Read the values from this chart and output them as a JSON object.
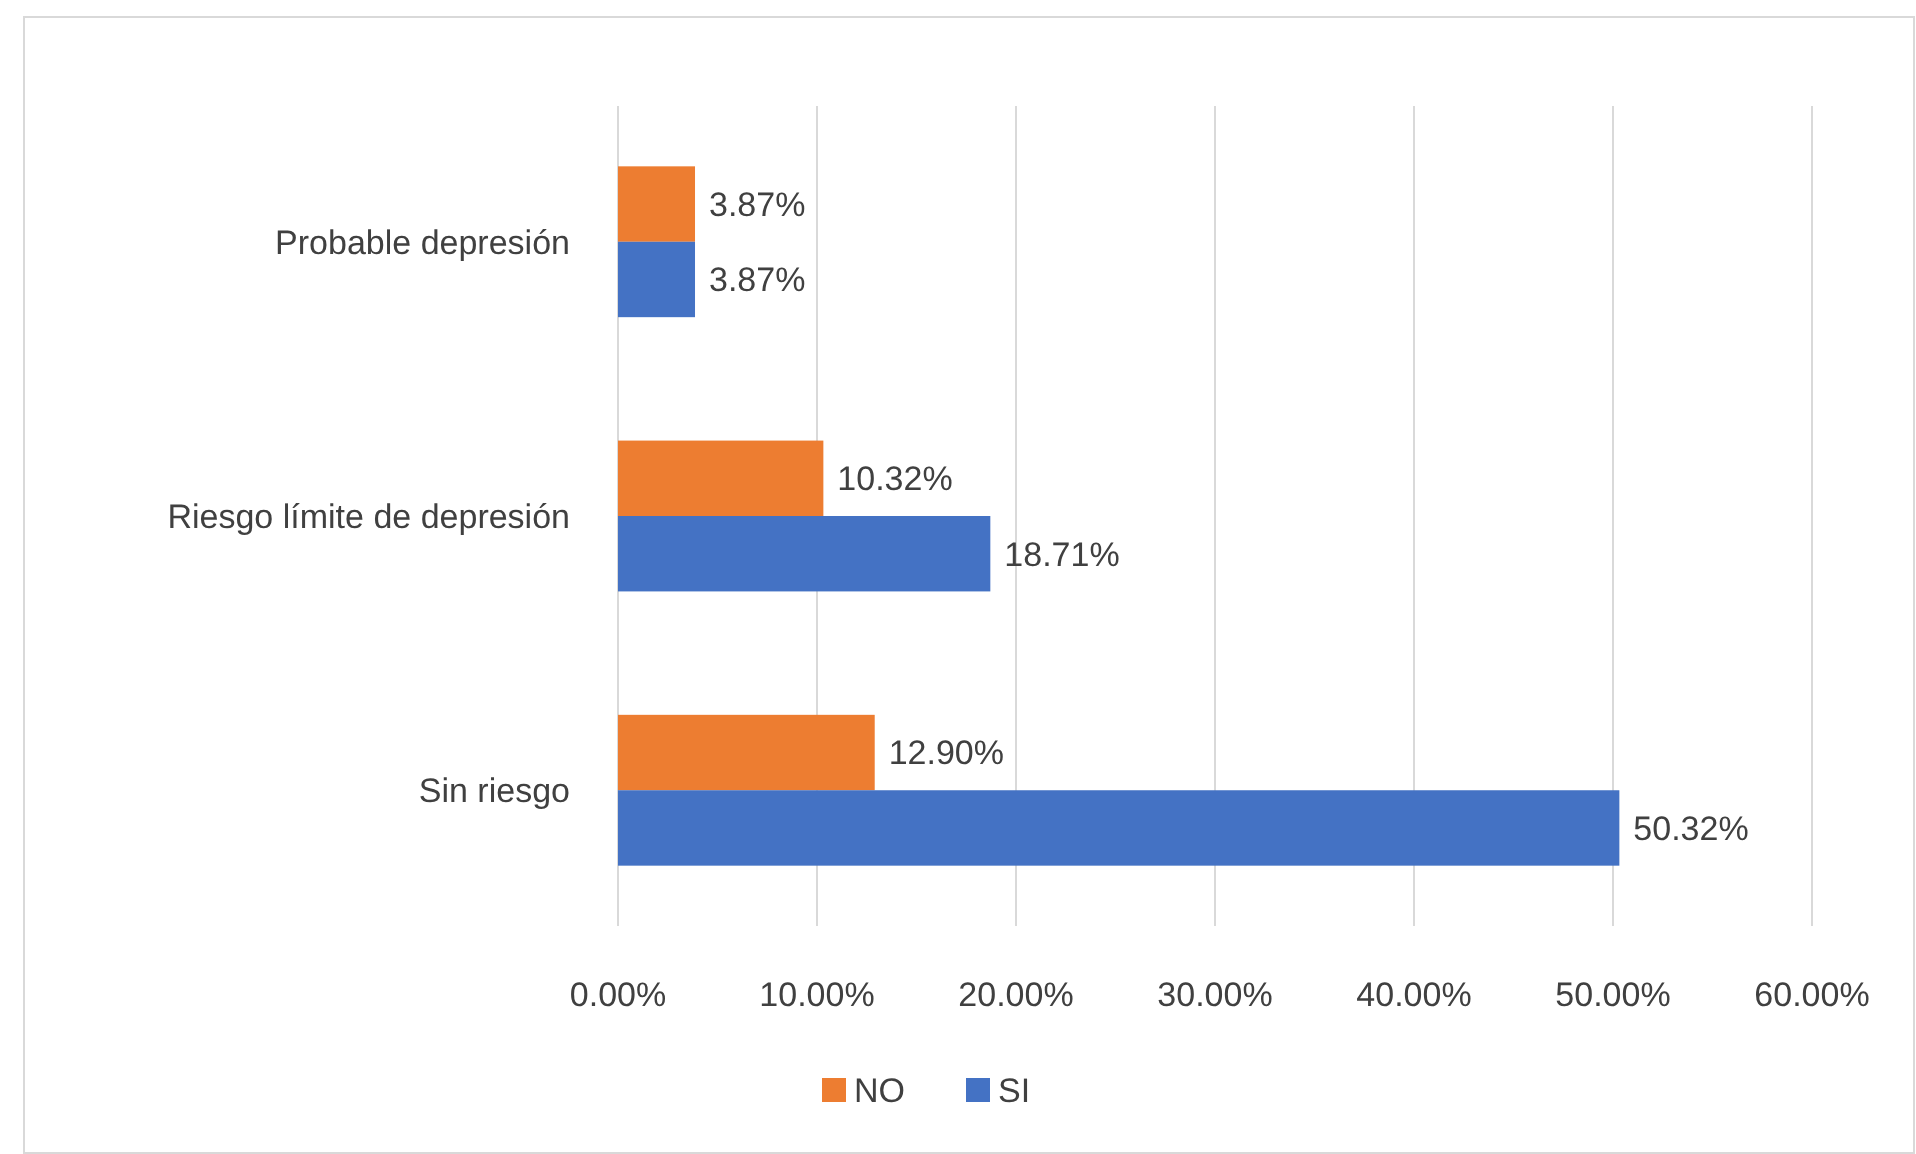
{
  "chart_data": {
    "type": "bar",
    "orientation": "horizontal",
    "categories": [
      "Probable depresión",
      "Riesgo límite de depresión",
      "Sin riesgo"
    ],
    "series": [
      {
        "name": "NO",
        "color": "#ed7d31",
        "values": [
          3.87,
          10.32,
          12.9
        ],
        "value_labels": [
          "3.87%",
          "10.32%",
          "12.90%"
        ]
      },
      {
        "name": "SI",
        "color": "#4472c4",
        "values": [
          3.87,
          18.71,
          50.32
        ],
        "value_labels": [
          "3.87%",
          "18.71%",
          "50.32%"
        ]
      }
    ],
    "xlim": [
      0,
      60
    ],
    "xticks": [
      {
        "value": 0,
        "label": "0.00%"
      },
      {
        "value": 10,
        "label": "10.00%"
      },
      {
        "value": 20,
        "label": "20.00%"
      },
      {
        "value": 30,
        "label": "30.00%"
      },
      {
        "value": 40,
        "label": "40.00%"
      },
      {
        "value": 50,
        "label": "50.00%"
      },
      {
        "value": 60,
        "label": "60.00%"
      }
    ],
    "grid": "x",
    "legend": "bottom"
  }
}
